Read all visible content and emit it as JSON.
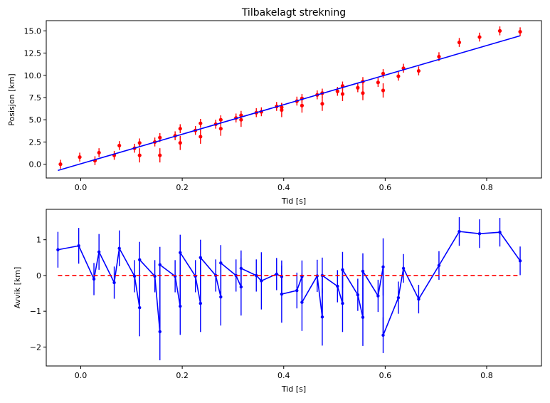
{
  "chart_data": [
    {
      "type": "scatter",
      "title": "Tilbakelagt strekning",
      "xlabel": "Tid [s]",
      "ylabel": "Posisjon [km]",
      "xlim": [
        -0.068,
        0.908
      ],
      "ylim": [
        -1.55,
        16.15
      ],
      "xticks": [
        0.0,
        0.2,
        0.4,
        0.6,
        0.8
      ],
      "xticklabels": [
        "0.0",
        "0.2",
        "0.4",
        "0.6",
        "0.8"
      ],
      "yticks": [
        0.0,
        2.5,
        5.0,
        7.5,
        10.0,
        12.5,
        15.0
      ],
      "yticklabels": [
        "0.0",
        "2.5",
        "5.0",
        "7.5",
        "10.0",
        "12.5",
        "15.0"
      ],
      "series": [
        {
          "kind": "errorbar-points",
          "color": "#ff0000",
          "x": [
            -0.04,
            -0.002,
            0.028,
            0.036,
            0.066,
            0.076,
            0.106,
            0.116,
            0.116,
            0.146,
            0.156,
            0.156,
            0.186,
            0.196,
            0.196,
            0.226,
            0.236,
            0.236,
            0.266,
            0.276,
            0.276,
            0.306,
            0.316,
            0.316,
            0.346,
            0.356,
            0.386,
            0.396,
            0.396,
            0.426,
            0.436,
            0.436,
            0.466,
            0.476,
            0.476,
            0.506,
            0.516,
            0.516,
            0.546,
            0.556,
            0.556,
            0.586,
            0.596,
            0.596,
            0.626,
            0.636,
            0.666,
            0.706,
            0.746,
            0.786,
            0.826,
            0.866
          ],
          "y": [
            0.0,
            0.8,
            0.4,
            1.3,
            1.0,
            2.1,
            1.8,
            2.4,
            1.0,
            2.5,
            3.0,
            1.0,
            3.2,
            4.0,
            2.4,
            3.8,
            4.6,
            3.1,
            4.5,
            5.0,
            4.0,
            5.2,
            5.5,
            5.0,
            5.8,
            5.9,
            6.5,
            6.4,
            6.1,
            7.1,
            7.4,
            6.6,
            7.8,
            8.0,
            6.8,
            8.2,
            8.8,
            7.9,
            8.6,
            9.3,
            8.0,
            9.2,
            10.2,
            8.3,
            9.9,
            10.8,
            10.5,
            12.1,
            13.7,
            14.3,
            15.0,
            14.9
          ],
          "yerr": [
            0.5,
            0.5,
            0.5,
            0.5,
            0.5,
            0.5,
            0.5,
            0.5,
            0.8,
            0.5,
            0.5,
            0.8,
            0.5,
            0.5,
            0.8,
            0.5,
            0.5,
            0.8,
            0.5,
            0.5,
            0.8,
            0.5,
            0.5,
            0.8,
            0.5,
            0.5,
            0.5,
            0.5,
            0.8,
            0.5,
            0.5,
            0.8,
            0.5,
            0.5,
            0.8,
            0.5,
            0.5,
            0.8,
            0.5,
            0.5,
            0.8,
            0.5,
            0.5,
            0.8,
            0.5,
            0.5,
            0.5,
            0.5,
            0.5,
            0.5,
            0.5,
            0.5
          ]
        },
        {
          "kind": "line",
          "color": "#0000ff",
          "x": [
            -0.045,
            0.866
          ],
          "y": [
            -0.7,
            14.45
          ]
        }
      ]
    },
    {
      "type": "line",
      "xlabel": "Tid [s]",
      "ylabel": "Avvik [km]",
      "xlim": [
        -0.068,
        0.908
      ],
      "ylim": [
        -2.53,
        1.85
      ],
      "xticks": [
        0.0,
        0.2,
        0.4,
        0.6,
        0.8
      ],
      "xticklabels": [
        "0.0",
        "0.2",
        "0.4",
        "0.6",
        "0.8"
      ],
      "yticks": [
        -2,
        -1,
        0,
        1
      ],
      "yticklabels": [
        "−2",
        "−1",
        "0",
        "1"
      ],
      "series": [
        {
          "kind": "errorbar-line",
          "color": "#0000ff",
          "x": [
            -0.045,
            -0.004,
            0.026,
            0.036,
            0.066,
            0.076,
            0.106,
            0.116,
            0.116,
            0.146,
            0.156,
            0.156,
            0.186,
            0.196,
            0.196,
            0.226,
            0.236,
            0.236,
            0.266,
            0.276,
            0.276,
            0.306,
            0.316,
            0.316,
            0.346,
            0.356,
            0.386,
            0.396,
            0.396,
            0.426,
            0.436,
            0.436,
            0.466,
            0.476,
            0.476,
            0.506,
            0.516,
            0.516,
            0.546,
            0.556,
            0.556,
            0.586,
            0.596,
            0.596,
            0.626,
            0.636,
            0.666,
            0.706,
            0.746,
            0.786,
            0.826,
            0.866
          ],
          "y": [
            0.72,
            0.83,
            -0.1,
            0.66,
            -0.2,
            0.76,
            -0.02,
            -0.9,
            0.44,
            -0.02,
            -1.57,
            0.3,
            -0.02,
            -0.86,
            0.64,
            -0.02,
            -0.78,
            0.5,
            0.0,
            -0.6,
            0.35,
            0.0,
            -0.32,
            0.2,
            0.0,
            -0.15,
            0.04,
            -0.03,
            -0.52,
            -0.42,
            -0.03,
            -0.75,
            -0.01,
            -1.16,
            0.0,
            -0.3,
            -0.78,
            0.16,
            -0.54,
            -1.17,
            0.12,
            -0.57,
            0.24,
            -1.67,
            -0.62,
            0.2,
            -0.66,
            0.28,
            1.23,
            1.17,
            1.21,
            0.41
          ],
          "yerr": [
            0.5,
            0.5,
            0.45,
            0.5,
            0.45,
            0.5,
            0.45,
            0.8,
            0.5,
            0.45,
            0.8,
            0.5,
            0.45,
            0.8,
            0.5,
            0.45,
            0.8,
            0.5,
            0.45,
            0.8,
            0.5,
            0.45,
            0.8,
            0.5,
            0.45,
            0.8,
            0.45,
            0.45,
            0.8,
            0.5,
            0.45,
            0.8,
            0.45,
            0.8,
            0.5,
            0.45,
            0.8,
            0.5,
            0.45,
            0.8,
            0.5,
            0.45,
            0.8,
            0.5,
            0.45,
            0.4,
            0.4,
            0.4,
            0.4,
            0.4,
            0.4,
            0.4
          ]
        },
        {
          "kind": "dashed-line",
          "color": "#ff0000",
          "x": [
            -0.045,
            0.866
          ],
          "y": [
            0,
            0
          ]
        }
      ]
    }
  ]
}
